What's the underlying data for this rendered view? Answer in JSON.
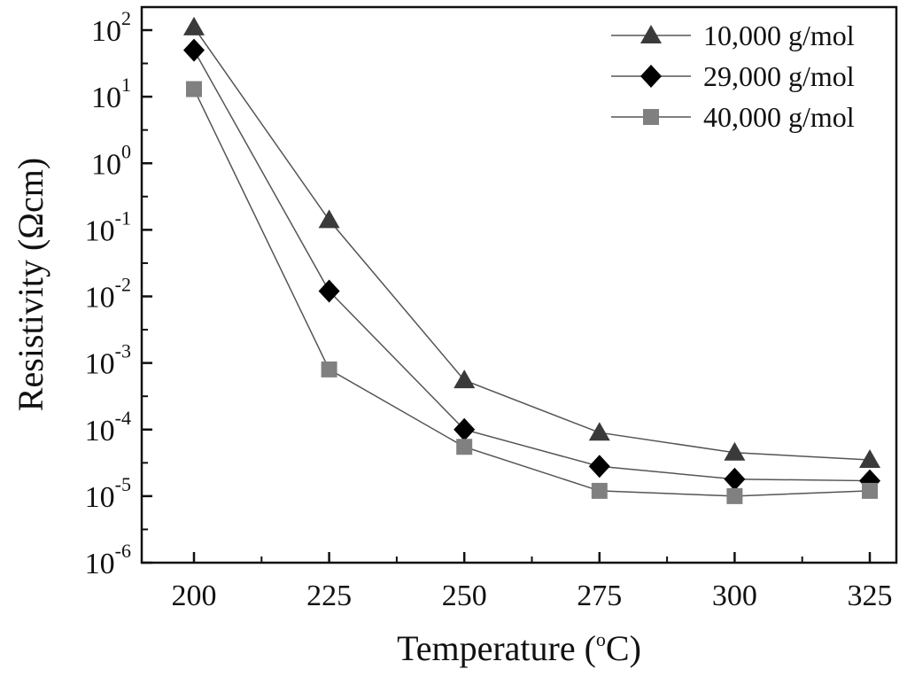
{
  "chart_data": {
    "type": "line",
    "xlabel": "Temperature (",
    "xlabel_sup": "o",
    "xlabel_tail": "C)",
    "ylabel": "Resistivity (Ωcm)",
    "x": [
      200,
      225,
      250,
      275,
      300,
      325
    ],
    "x_tick_labels": [
      "200",
      "225",
      "250",
      "275",
      "300",
      "325"
    ],
    "y_scale": "log",
    "ylim": [
      1e-06,
      100
    ],
    "y_ticks": [
      {
        "base": "10",
        "exp": "2"
      },
      {
        "base": "10",
        "exp": "1"
      },
      {
        "base": "10",
        "exp": "0"
      },
      {
        "base": "10",
        "exp": "-1"
      },
      {
        "base": "10",
        "exp": "-2"
      },
      {
        "base": "10",
        "exp": "-3"
      },
      {
        "base": "10",
        "exp": "-4"
      },
      {
        "base": "10",
        "exp": "-5"
      },
      {
        "base": "10",
        "exp": "-6"
      }
    ],
    "grid": false,
    "legend_position": "top-right",
    "series": [
      {
        "name": "10,000 g/mol",
        "marker": "triangle",
        "color": "#3a3a3a",
        "values": [
          110,
          0.14,
          0.00055,
          9e-05,
          4.5e-05,
          3.5e-05
        ]
      },
      {
        "name": "29,000 g/mol",
        "marker": "diamond",
        "color": "#000000",
        "values": [
          50,
          0.012,
          0.0001,
          2.8e-05,
          1.8e-05,
          1.7e-05
        ]
      },
      {
        "name": "40,000 g/mol",
        "marker": "square",
        "color": "#808080",
        "values": [
          13,
          0.0008,
          5.5e-05,
          1.2e-05,
          1e-05,
          1.2e-05
        ]
      }
    ]
  }
}
